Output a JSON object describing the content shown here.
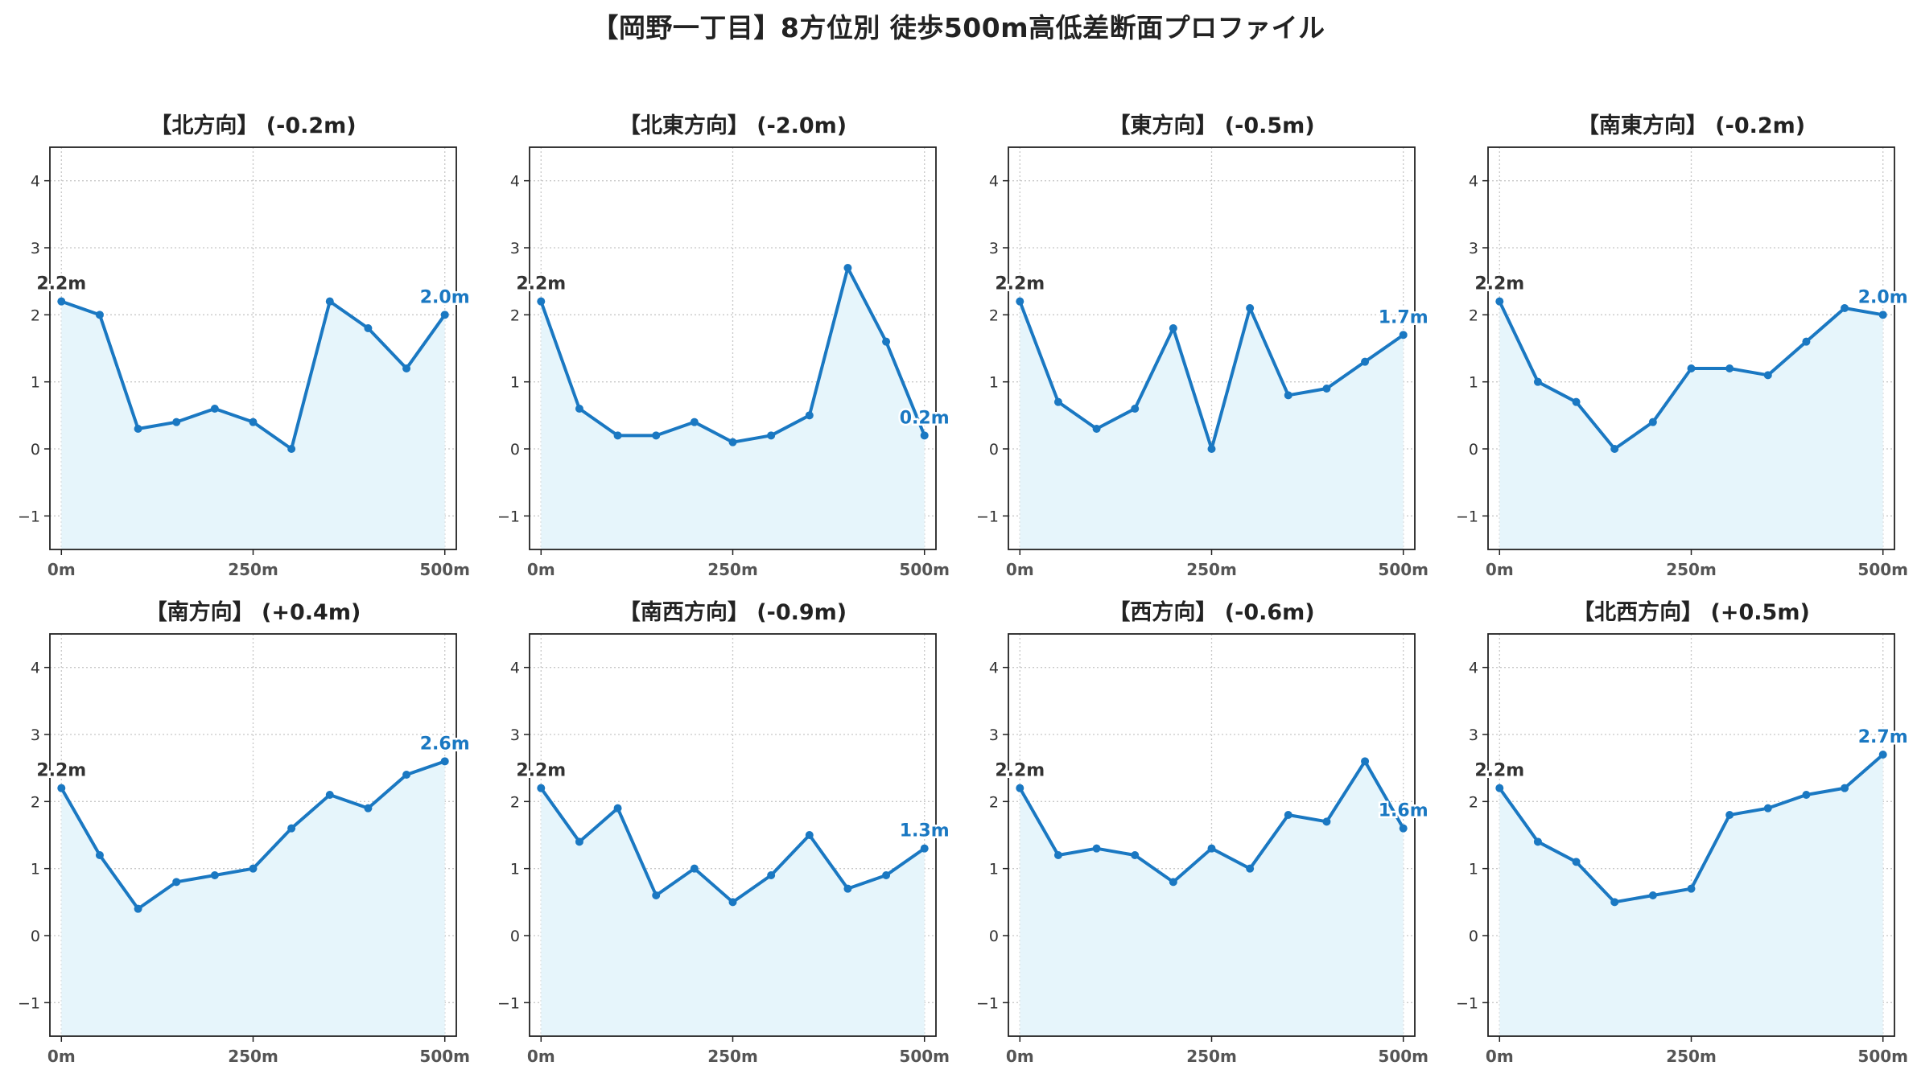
{
  "title": "【岡野一丁目】8方位別 徒歩500m高低差断面プロファイル",
  "colors": {
    "line": "#1a78c2",
    "fill": "#e6f5fb",
    "start_label": "#333333",
    "end_label": "#1a78c2",
    "grid": "#c8c8c8"
  },
  "chart_data": [
    {
      "type": "area",
      "title": "【北方向】 (-0.2m)",
      "x": [
        0,
        50,
        100,
        150,
        200,
        250,
        300,
        350,
        400,
        450,
        500
      ],
      "y": [
        2.2,
        2.0,
        0.3,
        0.4,
        0.6,
        0.4,
        0.0,
        2.2,
        1.8,
        1.2,
        2.0
      ],
      "start_label": "2.2m",
      "end_label": "2.0m",
      "xticks": [
        "0m",
        "250m",
        "500m"
      ],
      "yticks": [
        "−1",
        "0",
        "1",
        "2",
        "3",
        "4"
      ],
      "xlim": [
        -15,
        515
      ],
      "ylim": [
        -1.5,
        4.5
      ],
      "grid": true
    },
    {
      "type": "area",
      "title": "【北東方向】 (-2.0m)",
      "x": [
        0,
        50,
        100,
        150,
        200,
        250,
        300,
        350,
        400,
        450,
        500
      ],
      "y": [
        2.2,
        0.6,
        0.2,
        0.2,
        0.4,
        0.1,
        0.2,
        0.5,
        2.7,
        1.6,
        0.2
      ],
      "start_label": "2.2m",
      "end_label": "0.2m",
      "xticks": [
        "0m",
        "250m",
        "500m"
      ],
      "yticks": [
        "−1",
        "0",
        "1",
        "2",
        "3",
        "4"
      ],
      "xlim": [
        -15,
        515
      ],
      "ylim": [
        -1.5,
        4.5
      ],
      "grid": true
    },
    {
      "type": "area",
      "title": "【東方向】 (-0.5m)",
      "x": [
        0,
        50,
        100,
        150,
        200,
        250,
        300,
        350,
        400,
        450,
        500
      ],
      "y": [
        2.2,
        0.7,
        0.3,
        0.6,
        1.8,
        0.0,
        2.1,
        0.8,
        0.9,
        1.3,
        1.7
      ],
      "start_label": "2.2m",
      "end_label": "1.7m",
      "xticks": [
        "0m",
        "250m",
        "500m"
      ],
      "yticks": [
        "−1",
        "0",
        "1",
        "2",
        "3",
        "4"
      ],
      "xlim": [
        -15,
        515
      ],
      "ylim": [
        -1.5,
        4.5
      ],
      "grid": true
    },
    {
      "type": "area",
      "title": "【南東方向】 (-0.2m)",
      "x": [
        0,
        50,
        100,
        150,
        200,
        250,
        300,
        350,
        400,
        450,
        500
      ],
      "y": [
        2.2,
        1.0,
        0.7,
        0.0,
        0.4,
        1.2,
        1.2,
        1.1,
        1.6,
        2.1,
        2.0
      ],
      "start_label": "2.2m",
      "end_label": "2.0m",
      "xticks": [
        "0m",
        "250m",
        "500m"
      ],
      "yticks": [
        "−1",
        "0",
        "1",
        "2",
        "3",
        "4"
      ],
      "xlim": [
        -15,
        515
      ],
      "ylim": [
        -1.5,
        4.5
      ],
      "grid": true
    },
    {
      "type": "area",
      "title": "【南方向】 (+0.4m)",
      "x": [
        0,
        50,
        100,
        150,
        200,
        250,
        300,
        350,
        400,
        450,
        500
      ],
      "y": [
        2.2,
        1.2,
        0.4,
        0.8,
        0.9,
        1.0,
        1.6,
        2.1,
        1.9,
        2.4,
        2.6
      ],
      "start_label": "2.2m",
      "end_label": "2.6m",
      "xticks": [
        "0m",
        "250m",
        "500m"
      ],
      "yticks": [
        "−1",
        "0",
        "1",
        "2",
        "3",
        "4"
      ],
      "xlim": [
        -15,
        515
      ],
      "ylim": [
        -1.5,
        4.5
      ],
      "grid": true
    },
    {
      "type": "area",
      "title": "【南西方向】 (-0.9m)",
      "x": [
        0,
        50,
        100,
        150,
        200,
        250,
        300,
        350,
        400,
        450,
        500
      ],
      "y": [
        2.2,
        1.4,
        1.9,
        0.6,
        1.0,
        0.5,
        0.9,
        1.5,
        0.7,
        0.9,
        1.3
      ],
      "start_label": "2.2m",
      "end_label": "1.3m",
      "xticks": [
        "0m",
        "250m",
        "500m"
      ],
      "yticks": [
        "−1",
        "0",
        "1",
        "2",
        "3",
        "4"
      ],
      "xlim": [
        -15,
        515
      ],
      "ylim": [
        -1.5,
        4.5
      ],
      "grid": true
    },
    {
      "type": "area",
      "title": "【西方向】 (-0.6m)",
      "x": [
        0,
        50,
        100,
        150,
        200,
        250,
        300,
        350,
        400,
        450,
        500
      ],
      "y": [
        2.2,
        1.2,
        1.3,
        1.2,
        0.8,
        1.3,
        1.0,
        1.8,
        1.7,
        2.6,
        1.6
      ],
      "start_label": "2.2m",
      "end_label": "1.6m",
      "xticks": [
        "0m",
        "250m",
        "500m"
      ],
      "yticks": [
        "−1",
        "0",
        "1",
        "2",
        "3",
        "4"
      ],
      "xlim": [
        -15,
        515
      ],
      "ylim": [
        -1.5,
        4.5
      ],
      "grid": true
    },
    {
      "type": "area",
      "title": "【北西方向】 (+0.5m)",
      "x": [
        0,
        50,
        100,
        150,
        200,
        250,
        300,
        350,
        400,
        450,
        500
      ],
      "y": [
        2.2,
        1.4,
        1.1,
        0.5,
        0.6,
        0.7,
        1.8,
        1.9,
        2.1,
        2.2,
        2.7
      ],
      "start_label": "2.2m",
      "end_label": "2.7m",
      "xticks": [
        "0m",
        "250m",
        "500m"
      ],
      "yticks": [
        "−1",
        "0",
        "1",
        "2",
        "3",
        "4"
      ],
      "xlim": [
        -15,
        515
      ],
      "ylim": [
        -1.5,
        4.5
      ],
      "grid": true
    }
  ]
}
